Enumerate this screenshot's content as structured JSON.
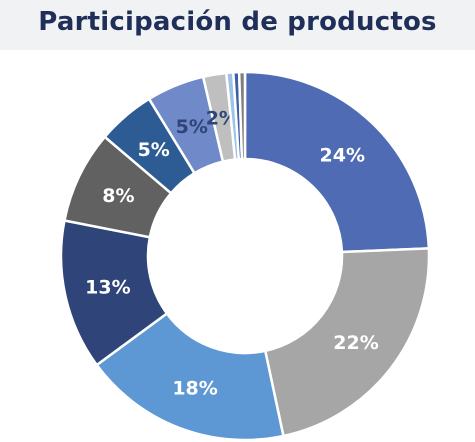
{
  "chart_data": {
    "type": "pie",
    "donut": true,
    "title": "Participación de productos",
    "slices": [
      {
        "value": 24,
        "label": "24%",
        "color": "#4f6bb4",
        "label_color": "#ffffff"
      },
      {
        "value": 22,
        "label": "22%",
        "color": "#a6a6a6",
        "label_color": "#ffffff"
      },
      {
        "value": 18,
        "label": "18%",
        "color": "#5d98d4",
        "label_color": "#ffffff"
      },
      {
        "value": 13,
        "label": "13%",
        "color": "#2f4478",
        "label_color": "#ffffff"
      },
      {
        "value": 8,
        "label": "8%",
        "color": "#616161",
        "label_color": "#ffffff"
      },
      {
        "value": 5,
        "label": "5%",
        "color": "#2d5c94",
        "label_color": "#ffffff"
      },
      {
        "value": 5,
        "label": "5%",
        "color": "#6f89c9",
        "label_color": "#2f4478"
      },
      {
        "value": 2,
        "label": "2%",
        "color": "#bfbfbf",
        "label_color": "#2f4478"
      },
      {
        "value": 0.6,
        "label": "",
        "color": "#9dc3e6",
        "label_color": "#ffffff"
      },
      {
        "value": 0.5,
        "label": "",
        "color": "#3e5fa8",
        "label_color": "#ffffff"
      },
      {
        "value": 0.5,
        "label": "",
        "color": "#7f7f7f",
        "label_color": "#ffffff"
      }
    ]
  }
}
